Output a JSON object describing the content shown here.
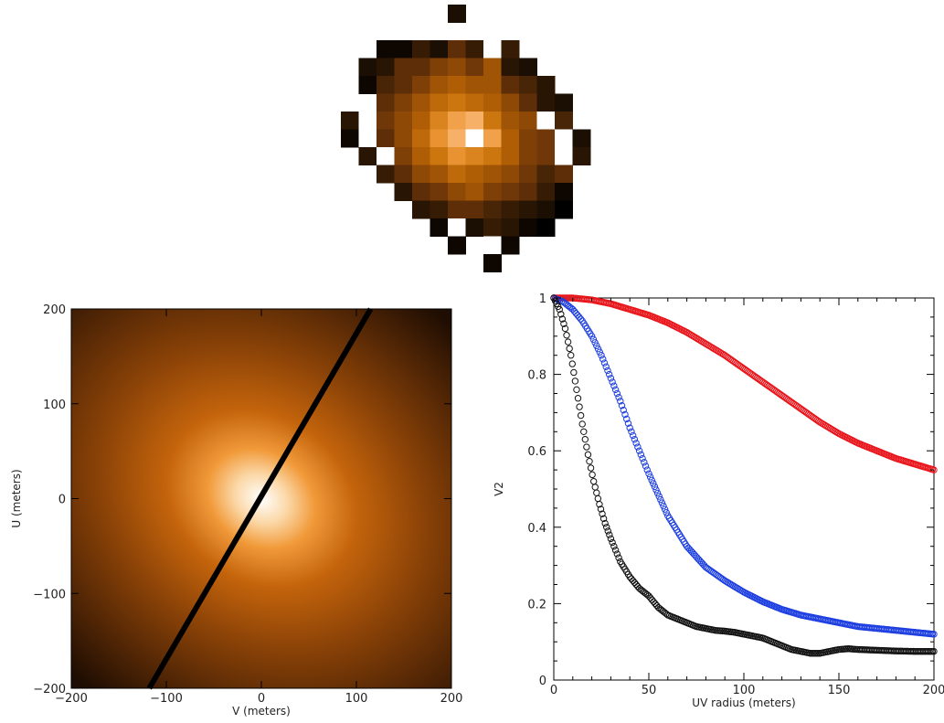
{
  "chart_data": [
    {
      "type": "heatmap",
      "colormap": [
        "#000000",
        "#1e0f02",
        "#3d1f06",
        "#6b3508",
        "#8d4806",
        "#b25f06",
        "#d17a12",
        "#ef9a3c",
        "#f9bc80",
        "#ffffff"
      ],
      "grid": [
        [
          null,
          null,
          null,
          null,
          null,
          null,
          0.1,
          null,
          null,
          null,
          null,
          null,
          null,
          null
        ],
        [
          null,
          null,
          null,
          null,
          null,
          null,
          null,
          null,
          null,
          null,
          null,
          null,
          null,
          null
        ],
        [
          null,
          null,
          0.05,
          0.05,
          0.2,
          0.1,
          0.3,
          0.2,
          1.0,
          0.2,
          null,
          null,
          null,
          null
        ],
        [
          null,
          0.1,
          0.15,
          0.3,
          0.3,
          0.4,
          0.45,
          0.35,
          0.5,
          0.15,
          0.1,
          null,
          null,
          null
        ],
        [
          null,
          0.05,
          0.25,
          0.3,
          0.4,
          0.5,
          0.55,
          0.5,
          0.5,
          0.3,
          0.25,
          0.15,
          null,
          null
        ],
        [
          null,
          null,
          0.3,
          0.4,
          0.5,
          0.6,
          0.65,
          0.6,
          0.55,
          0.45,
          0.3,
          0.15,
          0.1,
          null
        ],
        [
          0.15,
          1.0,
          0.35,
          0.45,
          0.55,
          0.7,
          0.8,
          0.85,
          0.65,
          0.5,
          0.45,
          1.0,
          0.25,
          null
        ],
        [
          0.05,
          1.0,
          0.3,
          0.45,
          0.6,
          0.75,
          0.85,
          1.0,
          0.8,
          0.55,
          0.4,
          0.35,
          1.0,
          0.1
        ],
        [
          null,
          0.15,
          1.0,
          0.4,
          0.55,
          0.65,
          0.75,
          0.7,
          0.65,
          0.55,
          0.4,
          0.35,
          1.0,
          0.15
        ],
        [
          null,
          null,
          0.2,
          0.3,
          0.45,
          0.5,
          0.6,
          0.55,
          0.5,
          0.45,
          0.35,
          0.25,
          0.3,
          null
        ],
        [
          null,
          null,
          null,
          0.15,
          0.3,
          0.35,
          0.45,
          0.5,
          0.4,
          0.35,
          0.3,
          0.2,
          0.05,
          null
        ],
        [
          null,
          null,
          null,
          null,
          0.15,
          0.2,
          0.3,
          0.3,
          0.25,
          0.2,
          0.15,
          0.1,
          0.0,
          null
        ],
        [
          null,
          null,
          null,
          null,
          null,
          0.05,
          1.0,
          0.1,
          0.2,
          0.15,
          0.05,
          0.0,
          null,
          null
        ],
        [
          null,
          null,
          null,
          null,
          null,
          null,
          0.05,
          null,
          1.0,
          0.05,
          null,
          null,
          null,
          null
        ],
        [
          null,
          null,
          null,
          null,
          null,
          null,
          null,
          null,
          0.05,
          null,
          null,
          null,
          null,
          null
        ]
      ]
    },
    {
      "type": "heatmap",
      "xlabel": "V (meters)",
      "ylabel": "U (meters)",
      "xlim": [
        -200,
        200
      ],
      "ylim": [
        -200,
        200
      ],
      "xticks": [
        "−200",
        "−100",
        "0",
        "100",
        "200"
      ],
      "yticks": [
        "−200",
        "−100",
        "0",
        "100",
        "200"
      ],
      "xtick_values": [
        -200,
        -100,
        0,
        100,
        200
      ],
      "ytick_values": [
        -200,
        -100,
        0,
        100,
        200
      ],
      "colormap": [
        "#ffffff",
        "#f6b25c",
        "#c9670c",
        "#6a3307",
        "#2c1404"
      ],
      "baseline": {
        "from": [
          -118,
          -200
        ],
        "to": [
          115,
          200
        ],
        "color": "#000000"
      }
    },
    {
      "type": "scatter",
      "xlabel": "UV radius (meters)",
      "ylabel": "V2",
      "xlim": [
        0,
        200
      ],
      "ylim": [
        0,
        1
      ],
      "xticks": [
        "0",
        "50",
        "100",
        "150",
        "200"
      ],
      "yticks": [
        "0",
        "0.2",
        "0.4",
        "0.6",
        "0.8",
        "1"
      ],
      "xtick_values": [
        0,
        50,
        100,
        150,
        200
      ],
      "ytick_values": [
        0,
        0.2,
        0.4,
        0.6,
        0.8,
        1.0
      ],
      "series": [
        {
          "color": "#e8141a",
          "x": [
            0,
            10,
            20,
            30,
            40,
            50,
            60,
            70,
            80,
            90,
            100,
            110,
            120,
            130,
            140,
            150,
            160,
            170,
            180,
            190,
            200
          ],
          "y": [
            1.0,
            1.0,
            0.995,
            0.985,
            0.97,
            0.955,
            0.935,
            0.91,
            0.88,
            0.85,
            0.815,
            0.78,
            0.745,
            0.71,
            0.675,
            0.645,
            0.62,
            0.6,
            0.58,
            0.565,
            0.55
          ]
        },
        {
          "color": "#1b3de0",
          "x": [
            0,
            5,
            10,
            15,
            20,
            25,
            30,
            35,
            40,
            45,
            50,
            60,
            70,
            80,
            90,
            100,
            110,
            120,
            130,
            140,
            150,
            160,
            170,
            180,
            190,
            200
          ],
          "y": [
            1.0,
            0.99,
            0.97,
            0.94,
            0.9,
            0.85,
            0.79,
            0.73,
            0.66,
            0.6,
            0.54,
            0.43,
            0.35,
            0.295,
            0.26,
            0.23,
            0.205,
            0.185,
            0.17,
            0.16,
            0.15,
            0.14,
            0.135,
            0.13,
            0.125,
            0.12
          ]
        },
        {
          "color": "#111111",
          "x": [
            0,
            3,
            6,
            9,
            12,
            15,
            18,
            21,
            24,
            27,
            30,
            35,
            40,
            45,
            50,
            55,
            60,
            65,
            70,
            75,
            80,
            85,
            90,
            95,
            100,
            105,
            110,
            115,
            120,
            125,
            130,
            135,
            140,
            145,
            150,
            155,
            160,
            170,
            180,
            190,
            200
          ],
          "y": [
            1.0,
            0.97,
            0.92,
            0.85,
            0.76,
            0.67,
            0.59,
            0.52,
            0.46,
            0.41,
            0.37,
            0.31,
            0.27,
            0.24,
            0.22,
            0.19,
            0.17,
            0.16,
            0.15,
            0.14,
            0.135,
            0.13,
            0.128,
            0.125,
            0.12,
            0.115,
            0.11,
            0.1,
            0.09,
            0.08,
            0.075,
            0.07,
            0.07,
            0.075,
            0.08,
            0.082,
            0.08,
            0.078,
            0.076,
            0.075,
            0.075
          ]
        }
      ]
    }
  ]
}
